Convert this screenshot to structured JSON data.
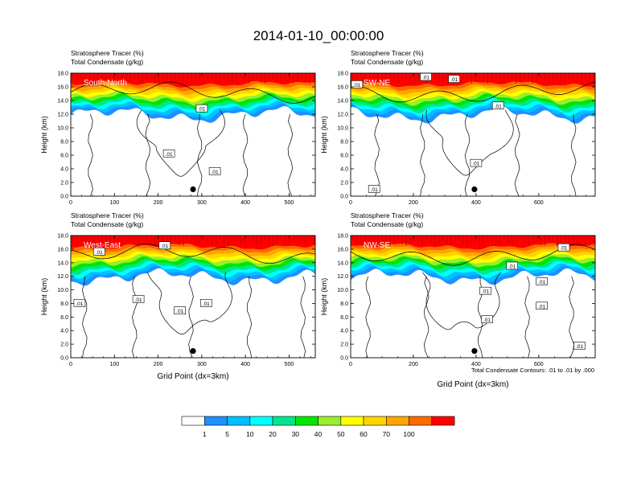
{
  "figure": {
    "title": "2014-01-10_00:00:00",
    "footnote": "Total Condensate Contours: .01 to .01 by .000",
    "colorbar": {
      "levels": [
        "1",
        "5",
        "10",
        "20",
        "30",
        "40",
        "50",
        "60",
        "70",
        "100"
      ],
      "colors": [
        "#ffffff",
        "#1e90ff",
        "#00bfff",
        "#00ffff",
        "#00e68c",
        "#00e600",
        "#9aee2e",
        "#ffff00",
        "#ffd400",
        "#ffa500",
        "#ff6a00",
        "#ff0000"
      ]
    }
  },
  "chart_data": [
    {
      "type": "contour",
      "panel_label": "South-North",
      "title_line1": "Stratosphere Tracer   (%)",
      "title_line2": "Total Condensate   (g/kg)",
      "ylabel": "Height (km)",
      "xlabel": "",
      "xlim": [
        0,
        560
      ],
      "xticks": [
        "0",
        "100",
        "200",
        "300",
        "400",
        "500"
      ],
      "ylim": [
        0,
        18
      ],
      "yticks": [
        "0.0",
        "2.0",
        "4.0",
        "6.0",
        "8.0",
        "10.0",
        "12.0",
        "14.0",
        "16.0",
        "18.0"
      ],
      "marker": {
        "x": 280,
        "y": 1.0
      },
      "contour_labels": [
        {
          "text": ".01",
          "x": 300,
          "y": 12.8
        },
        {
          "text": ".01",
          "x": 225,
          "y": 6.2
        },
        {
          "text": ".01",
          "x": 330,
          "y": 3.6
        }
      ]
    },
    {
      "type": "contour",
      "panel_label": "SW-NE",
      "title_line1": "Stratosphere Tracer   (%)",
      "title_line2": "Total Condensate   (g/kg)",
      "ylabel": "Height (km)",
      "xlabel": "",
      "xlim": [
        0,
        780
      ],
      "xticks": [
        "0",
        "200",
        "400",
        "600"
      ],
      "ylim": [
        0,
        18
      ],
      "yticks": [
        "0.0",
        "2.0",
        "4.0",
        "6.0",
        "8.0",
        "10.0",
        "12.0",
        "14.0",
        "16.0",
        "18.0"
      ],
      "marker": {
        "x": 395,
        "y": 1.0
      },
      "contour_labels": [
        {
          "text": ".01",
          "x": 20,
          "y": 16.3
        },
        {
          "text": ".01",
          "x": 240,
          "y": 17.4
        },
        {
          "text": ".01",
          "x": 330,
          "y": 17.1
        },
        {
          "text": ".01",
          "x": 470,
          "y": 13.2
        },
        {
          "text": ".01",
          "x": 400,
          "y": 4.8
        },
        {
          "text": ".01",
          "x": 75,
          "y": 1.0
        }
      ]
    },
    {
      "type": "contour",
      "panel_label": "West-East",
      "title_line1": "Stratosphere Tracer   (%)",
      "title_line2": "Total Condensate   (g/kg)",
      "ylabel": "Height (km)",
      "xlabel": "Grid Point (dx=3km)",
      "xlim": [
        0,
        560
      ],
      "xticks": [
        "0",
        "100",
        "200",
        "300",
        "400",
        "500"
      ],
      "ylim": [
        0,
        18
      ],
      "yticks": [
        "0.0",
        "2.0",
        "4.0",
        "6.0",
        "8.0",
        "10.0",
        "12.0",
        "14.0",
        "16.0",
        "18.0"
      ],
      "marker": {
        "x": 280,
        "y": 1.0
      },
      "contour_labels": [
        {
          "text": ".01",
          "x": 65,
          "y": 15.6
        },
        {
          "text": ".01",
          "x": 215,
          "y": 16.5
        },
        {
          "text": ".01",
          "x": 20,
          "y": 8.0
        },
        {
          "text": ".01",
          "x": 155,
          "y": 8.6
        },
        {
          "text": ".01",
          "x": 250,
          "y": 6.9
        },
        {
          "text": ".01",
          "x": 310,
          "y": 8.0
        }
      ]
    },
    {
      "type": "contour",
      "panel_label": "NW-SE",
      "title_line1": "Stratosphere Tracer   (%)",
      "title_line2": "Total Condensate   (g/kg)",
      "ylabel": "Height (km)",
      "xlabel": "Grid Point (dx=3km)",
      "xlim": [
        0,
        780
      ],
      "xticks": [
        "0",
        "200",
        "400",
        "600"
      ],
      "ylim": [
        0,
        18
      ],
      "yticks": [
        "0.0",
        "2.0",
        "4.0",
        "6.0",
        "8.0",
        "10.0",
        "12.0",
        "14.0",
        "16.0",
        "18.0"
      ],
      "marker": {
        "x": 395,
        "y": 1.0
      },
      "contour_labels": [
        {
          "text": ".01",
          "x": 515,
          "y": 13.5
        },
        {
          "text": ".01",
          "x": 680,
          "y": 16.2
        },
        {
          "text": ".01",
          "x": 430,
          "y": 9.8
        },
        {
          "text": ".01",
          "x": 610,
          "y": 7.6
        },
        {
          "text": ".01",
          "x": 435,
          "y": 5.6
        },
        {
          "text": ".01",
          "x": 730,
          "y": 1.7
        },
        {
          "text": ".01",
          "x": 610,
          "y": 11.2
        }
      ]
    }
  ]
}
